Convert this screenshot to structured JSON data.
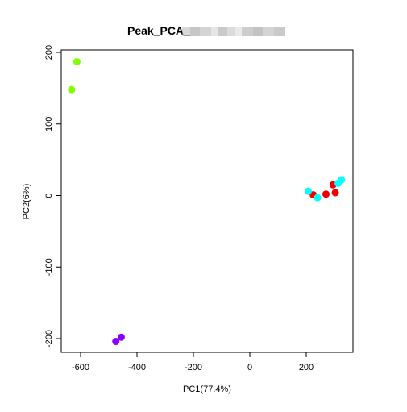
{
  "chart_data": {
    "type": "scatter",
    "title": "Peak_PCA_",
    "xlabel": "PC1(77.4%)",
    "ylabel": "PC2(6%)",
    "xlim": [
      -640,
      365
    ],
    "ylim": [
      -215,
      205
    ],
    "xticks": [
      -600,
      -400,
      -200,
      0,
      200
    ],
    "yticks": [
      -200,
      -100,
      0,
      100,
      200
    ],
    "grid": false,
    "legend": "none",
    "colors": {
      "green": "#7fff00",
      "purple": "#8b00ff",
      "red": "#ee0000",
      "cyan": "#00ffff",
      "title_redaction": "#b8b8b8"
    },
    "series": [
      {
        "color": "#7fff00",
        "points": [
          {
            "x": -613,
            "y": 187
          },
          {
            "x": -632,
            "y": 148
          }
        ]
      },
      {
        "color": "#8b00ff",
        "points": [
          {
            "x": -475,
            "y": -204
          },
          {
            "x": -456,
            "y": -198
          }
        ]
      },
      {
        "color": "#ee0000",
        "points": [
          {
            "x": 225,
            "y": 1
          },
          {
            "x": 270,
            "y": 2
          },
          {
            "x": 295,
            "y": 15
          },
          {
            "x": 303,
            "y": 4
          }
        ]
      },
      {
        "color": "#00ffff",
        "points": [
          {
            "x": 207,
            "y": 6
          },
          {
            "x": 240,
            "y": -3
          },
          {
            "x": 313,
            "y": 17
          },
          {
            "x": 325,
            "y": 22
          }
        ]
      }
    ]
  }
}
